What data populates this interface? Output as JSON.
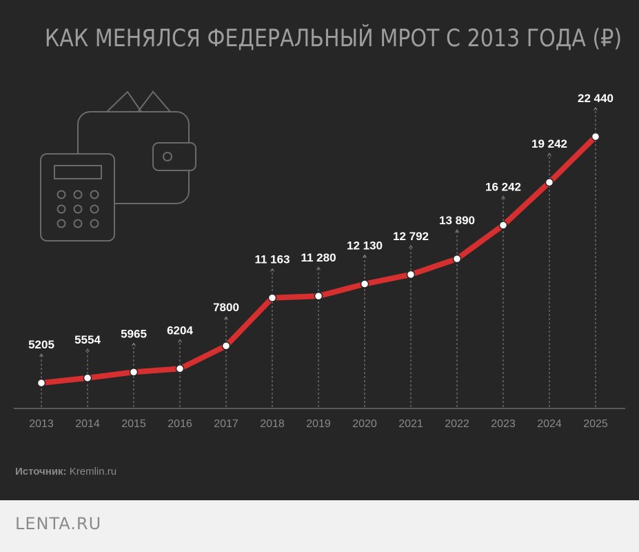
{
  "title": "КАК МЕНЯЛСЯ ФЕДЕРАЛЬНЫЙ МРОТ С 2013 ГОДА (₽)",
  "source": {
    "label": "Источник:",
    "value": "Kremlin.ru"
  },
  "brand": "LENTA.RU",
  "colors": {
    "background": "#262626",
    "line": "#d5302f",
    "text": "#ffffff",
    "axis": "#7a7a7a",
    "footer": "#f1f1f1",
    "icon": "#6a6a6a"
  },
  "icons": [
    "wallet-icon",
    "calculator-icon"
  ],
  "chart_data": {
    "type": "line",
    "title": "КАК МЕНЯЛСЯ ФЕДЕРАЛЬНЫЙ МРОТ С 2013 ГОДА (₽)",
    "categories": [
      "2013",
      "2014",
      "2015",
      "2016",
      "2017",
      "2018",
      "2019",
      "2020",
      "2021",
      "2022",
      "2023",
      "2024",
      "2025"
    ],
    "values": [
      5205,
      5554,
      5965,
      6204,
      7800,
      11163,
      11280,
      12130,
      12792,
      13890,
      16242,
      19242,
      22440
    ],
    "value_labels": [
      "5205",
      "5554",
      "5965",
      "6204",
      "7800",
      "11 163",
      "11 280",
      "12 130",
      "12 792",
      "13 890",
      "16 242",
      "19 242",
      "22 440"
    ],
    "grid": false,
    "legend": "none"
  }
}
